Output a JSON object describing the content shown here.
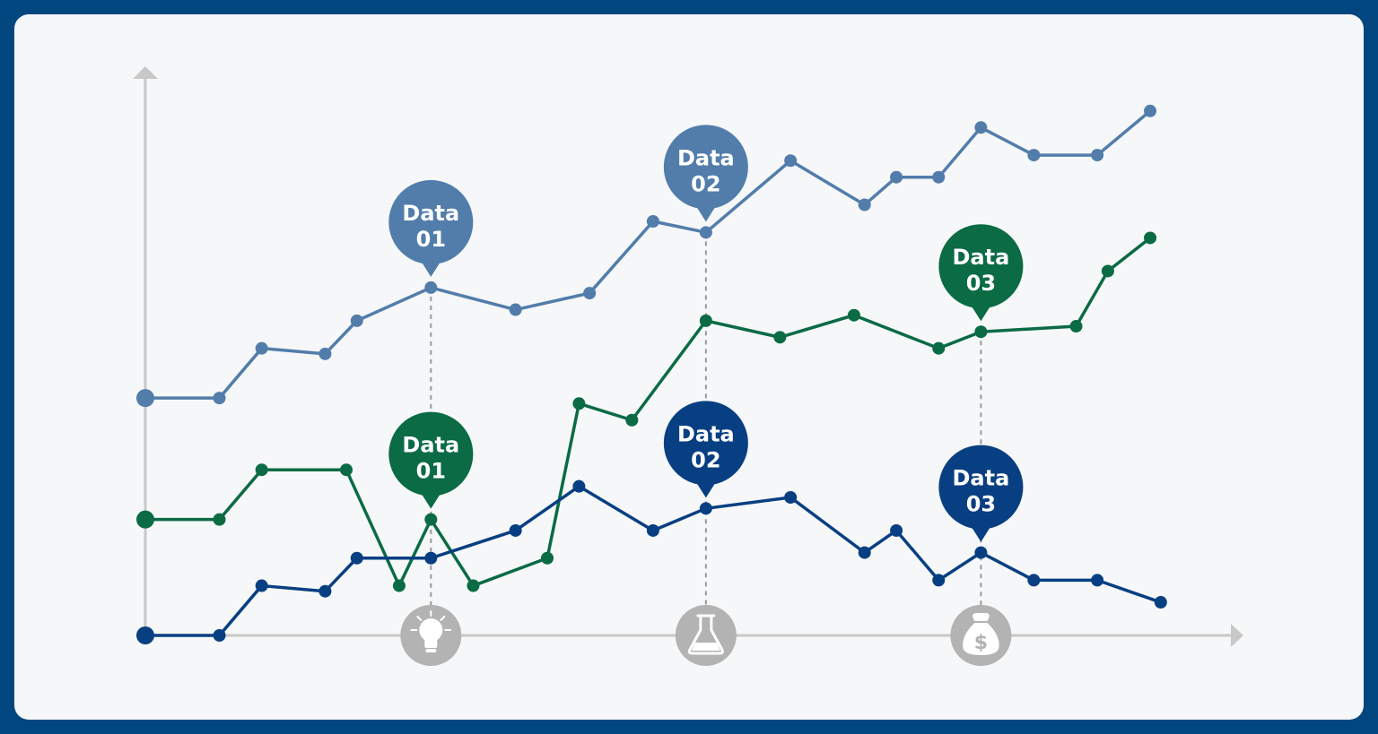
{
  "chart_data": {
    "type": "line",
    "title": "",
    "xlabel": "",
    "ylabel": "",
    "grid": false,
    "xlim": [
      0,
      100
    ],
    "ylim": [
      0,
      100
    ],
    "series": [
      {
        "color": "#527dab",
        "points": [
          [
            0,
            43
          ],
          [
            7,
            43
          ],
          [
            11,
            52
          ],
          [
            17,
            51
          ],
          [
            20,
            57
          ],
          [
            27,
            63
          ],
          [
            35,
            59
          ],
          [
            42,
            62
          ],
          [
            48,
            75
          ],
          [
            53,
            73
          ],
          [
            61,
            86
          ],
          [
            68,
            78
          ],
          [
            71,
            83
          ],
          [
            75,
            83
          ],
          [
            79,
            92
          ],
          [
            84,
            87
          ],
          [
            90,
            87
          ],
          [
            95,
            95
          ]
        ]
      },
      {
        "color": "#0a6b45",
        "points": [
          [
            0,
            21
          ],
          [
            7,
            21
          ],
          [
            11,
            30
          ],
          [
            19,
            30
          ],
          [
            24,
            9
          ],
          [
            27,
            21
          ],
          [
            31,
            9
          ],
          [
            38,
            14
          ],
          [
            41,
            42
          ],
          [
            46,
            39
          ],
          [
            53,
            57
          ],
          [
            60,
            54
          ],
          [
            67,
            58
          ],
          [
            75,
            52
          ],
          [
            79,
            55
          ],
          [
            88,
            56
          ],
          [
            91,
            66
          ],
          [
            95,
            72
          ]
        ]
      },
      {
        "color": "#083f82",
        "points": [
          [
            0,
            0
          ],
          [
            7,
            0
          ],
          [
            11,
            9
          ],
          [
            17,
            8
          ],
          [
            20,
            14
          ],
          [
            27,
            14
          ],
          [
            35,
            19
          ],
          [
            41,
            27
          ],
          [
            48,
            19
          ],
          [
            53,
            23
          ],
          [
            61,
            25
          ],
          [
            68,
            15
          ],
          [
            71,
            19
          ],
          [
            75,
            10
          ],
          [
            79,
            15
          ],
          [
            84,
            10
          ],
          [
            90,
            10
          ],
          [
            96,
            6
          ]
        ]
      }
    ],
    "callouts": [
      {
        "series": 0,
        "x": 27,
        "line1": "Data",
        "line2": "01"
      },
      {
        "series": 0,
        "x": 53,
        "line1": "Data",
        "line2": "02"
      },
      {
        "series": 1,
        "x": 79,
        "line1": "Data",
        "line2": "03"
      },
      {
        "series": 1,
        "x": 27,
        "line1": "Data",
        "line2": "01"
      },
      {
        "series": 2,
        "x": 53,
        "line1": "Data",
        "line2": "02"
      },
      {
        "series": 2,
        "x": 79,
        "line1": "Data",
        "line2": "03"
      }
    ],
    "guides": [
      {
        "x": 27,
        "top_series": 0,
        "icon": "lightbulb-icon"
      },
      {
        "x": 53,
        "top_series": 0,
        "icon": "flask-icon"
      },
      {
        "x": 79,
        "top_series": 1,
        "icon": "money-bag-icon"
      }
    ],
    "colors": {
      "axis": "#c8c8c8",
      "guide": "#999999",
      "icon_circle": "#b3b3b3",
      "icon_glyph": "#ffffff",
      "frame": "#02467f",
      "panel": "#f6f7f8"
    }
  }
}
